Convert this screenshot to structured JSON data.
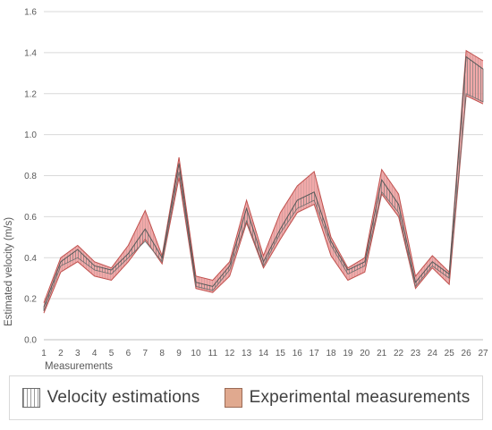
{
  "chart_data": {
    "type": "area",
    "ylabel": "Estimated velocity (m/s)",
    "xlabel": "Measurements",
    "ylim": [
      0,
      1.6
    ],
    "yticks": [
      "0.0",
      "0.2",
      "0.4",
      "0.6",
      "0.8",
      "1.0",
      "1.2",
      "1.4",
      "1.6"
    ],
    "categories": [
      "1",
      "2",
      "3",
      "4",
      "5",
      "6",
      "7",
      "8",
      "9",
      "10",
      "11",
      "12",
      "13",
      "14",
      "15",
      "16",
      "17",
      "18",
      "19",
      "20",
      "21",
      "22",
      "23",
      "24",
      "25",
      "26",
      "27"
    ],
    "grid": true,
    "legend_position": "bottom",
    "series": [
      {
        "name": "Velocity estimations",
        "style": "vertical-hatch band",
        "color": "#7f7f7f",
        "upper": [
          0.16,
          0.38,
          0.44,
          0.36,
          0.34,
          0.42,
          0.54,
          0.4,
          0.86,
          0.28,
          0.26,
          0.36,
          0.64,
          0.38,
          0.54,
          0.68,
          0.72,
          0.48,
          0.34,
          0.38,
          0.78,
          0.66,
          0.28,
          0.38,
          0.32,
          1.38,
          1.32
        ],
        "lower": [
          0.14,
          0.36,
          0.4,
          0.34,
          0.32,
          0.4,
          0.48,
          0.38,
          0.82,
          0.26,
          0.24,
          0.34,
          0.58,
          0.36,
          0.52,
          0.64,
          0.68,
          0.46,
          0.32,
          0.36,
          0.72,
          0.62,
          0.26,
          0.36,
          0.3,
          1.2,
          1.16
        ]
      },
      {
        "name": "Experimental measurements",
        "style": "filled band",
        "color": "#e06666",
        "upper": [
          0.18,
          0.4,
          0.46,
          0.38,
          0.35,
          0.46,
          0.63,
          0.41,
          0.89,
          0.31,
          0.29,
          0.38,
          0.68,
          0.41,
          0.62,
          0.75,
          0.82,
          0.5,
          0.35,
          0.4,
          0.83,
          0.71,
          0.31,
          0.41,
          0.33,
          1.41,
          1.36
        ],
        "lower": [
          0.13,
          0.33,
          0.38,
          0.31,
          0.29,
          0.38,
          0.49,
          0.37,
          0.79,
          0.25,
          0.23,
          0.31,
          0.57,
          0.35,
          0.49,
          0.62,
          0.66,
          0.41,
          0.29,
          0.33,
          0.71,
          0.6,
          0.25,
          0.35,
          0.27,
          1.19,
          1.15
        ]
      }
    ]
  }
}
